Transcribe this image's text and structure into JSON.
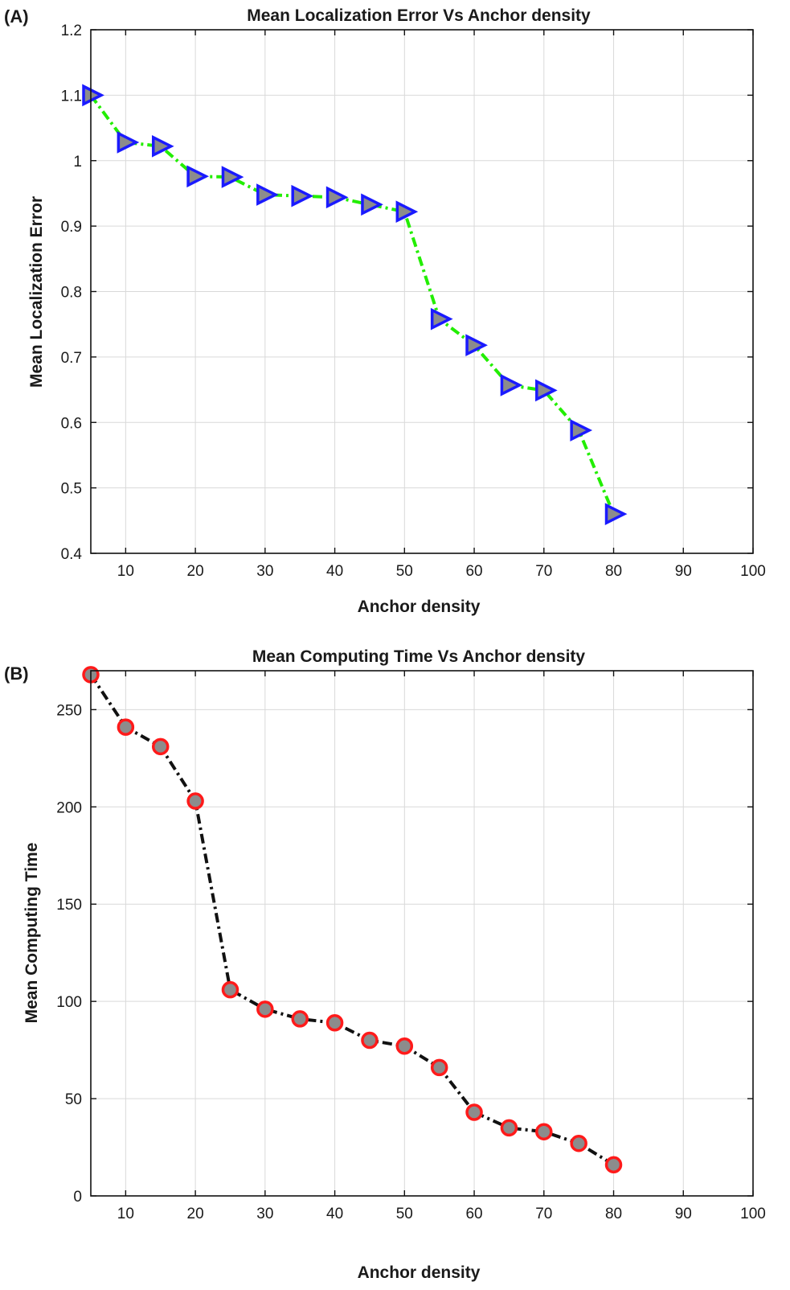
{
  "panels": [
    {
      "panel_label": "(A)",
      "marker": "triangle-right",
      "colors": {
        "line": "#22ee00",
        "marker_fill": "#8c8c8c",
        "marker_edge": "#1a1aff"
      },
      "chart_data": {
        "type": "line",
        "title": "Mean Localization Error Vs Anchor density",
        "xlabel": "Anchor density",
        "ylabel": "Mean Localization Error",
        "xlim": [
          5,
          100
        ],
        "ylim": [
          0.4,
          1.2
        ],
        "xticks": [
          10,
          20,
          30,
          40,
          50,
          60,
          70,
          80,
          90,
          100
        ],
        "yticks": [
          0.4,
          0.5,
          0.6,
          0.7,
          0.8,
          0.9,
          1,
          1.1,
          1.2
        ],
        "grid": true,
        "line_style": "dash-dot",
        "x": [
          5,
          10,
          15,
          20,
          25,
          30,
          35,
          40,
          45,
          50,
          55,
          60,
          65,
          70,
          75,
          80
        ],
        "y": [
          1.1,
          1.028,
          1.022,
          0.976,
          0.975,
          0.948,
          0.946,
          0.944,
          0.933,
          0.922,
          0.758,
          0.718,
          0.657,
          0.649,
          0.588,
          0.46
        ]
      }
    },
    {
      "panel_label": "(B)",
      "marker": "circle",
      "colors": {
        "line": "#111111",
        "marker_fill": "#8c8c8c",
        "marker_edge": "#ff1a1a"
      },
      "chart_data": {
        "type": "line",
        "title": "Mean Computing Time Vs Anchor density",
        "xlabel": "Anchor density",
        "ylabel": "Mean Computing Time",
        "xlim": [
          5,
          100
        ],
        "ylim": [
          0,
          270
        ],
        "xticks": [
          10,
          20,
          30,
          40,
          50,
          60,
          70,
          80,
          90,
          100
        ],
        "yticks": [
          0,
          50,
          100,
          150,
          200,
          250
        ],
        "grid": true,
        "line_style": "dash-dot",
        "x": [
          5,
          10,
          15,
          20,
          25,
          30,
          35,
          40,
          45,
          50,
          55,
          60,
          65,
          70,
          75,
          80
        ],
        "y": [
          268,
          241,
          231,
          203,
          106,
          96,
          91,
          89,
          80,
          77,
          66,
          43,
          35,
          33,
          27,
          16
        ]
      }
    }
  ]
}
